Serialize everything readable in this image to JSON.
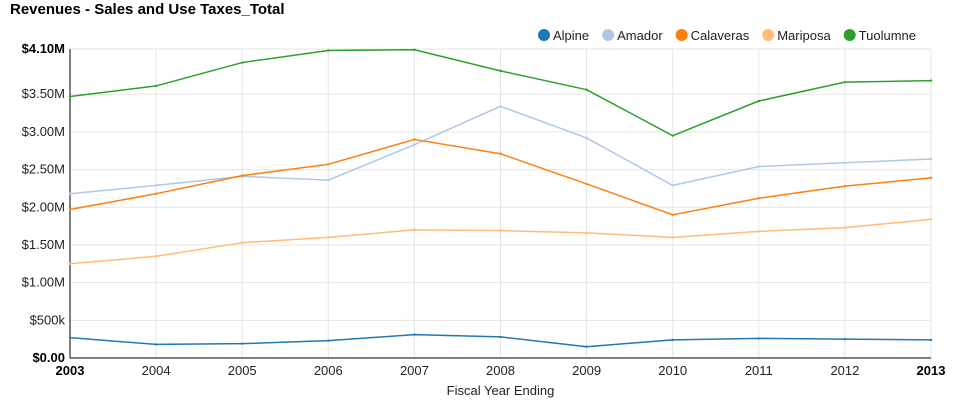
{
  "chart_data": {
    "type": "line",
    "title": "Revenues - Sales and Use Taxes_Total",
    "xlabel": "Fiscal Year Ending",
    "ylabel": "",
    "x": [
      2003,
      2004,
      2005,
      2006,
      2007,
      2008,
      2009,
      2010,
      2011,
      2012,
      2013
    ],
    "x_tick_labels": [
      "2003",
      "2004",
      "2005",
      "2006",
      "2007",
      "2008",
      "2009",
      "2010",
      "2011",
      "2012",
      "2013"
    ],
    "ylim": [
      0,
      4100000
    ],
    "y_ticks": [
      0,
      500000,
      1000000,
      1500000,
      2000000,
      2500000,
      3000000,
      3500000,
      4100000
    ],
    "y_tick_labels": [
      "$0.00",
      "$500k",
      "$1.00M",
      "$1.50M",
      "$2.00M",
      "$2.50M",
      "$3.00M",
      "$3.50M",
      "$4.10M"
    ],
    "grid": true,
    "legend_position": "top-right",
    "series": [
      {
        "name": "Alpine",
        "color": "#1f77b4",
        "values": [
          270000,
          180000,
          190000,
          230000,
          310000,
          280000,
          150000,
          240000,
          260000,
          250000,
          240000
        ]
      },
      {
        "name": "Amador",
        "color": "#aec7e8",
        "values": [
          2180000,
          2290000,
          2410000,
          2360000,
          2830000,
          3340000,
          2920000,
          2290000,
          2540000,
          2590000,
          2640000
        ]
      },
      {
        "name": "Calaveras",
        "color": "#ff7f0e",
        "values": [
          1970000,
          2180000,
          2420000,
          2570000,
          2900000,
          2710000,
          2310000,
          1900000,
          2120000,
          2280000,
          2390000
        ]
      },
      {
        "name": "Mariposa",
        "color": "#ffbb78",
        "values": [
          1250000,
          1350000,
          1530000,
          1600000,
          1700000,
          1690000,
          1660000,
          1600000,
          1680000,
          1730000,
          1840000
        ]
      },
      {
        "name": "Tuolumne",
        "color": "#2ca02c",
        "values": [
          3470000,
          3610000,
          3920000,
          4080000,
          4090000,
          3810000,
          3560000,
          2950000,
          3410000,
          3660000,
          3680000
        ]
      }
    ]
  }
}
